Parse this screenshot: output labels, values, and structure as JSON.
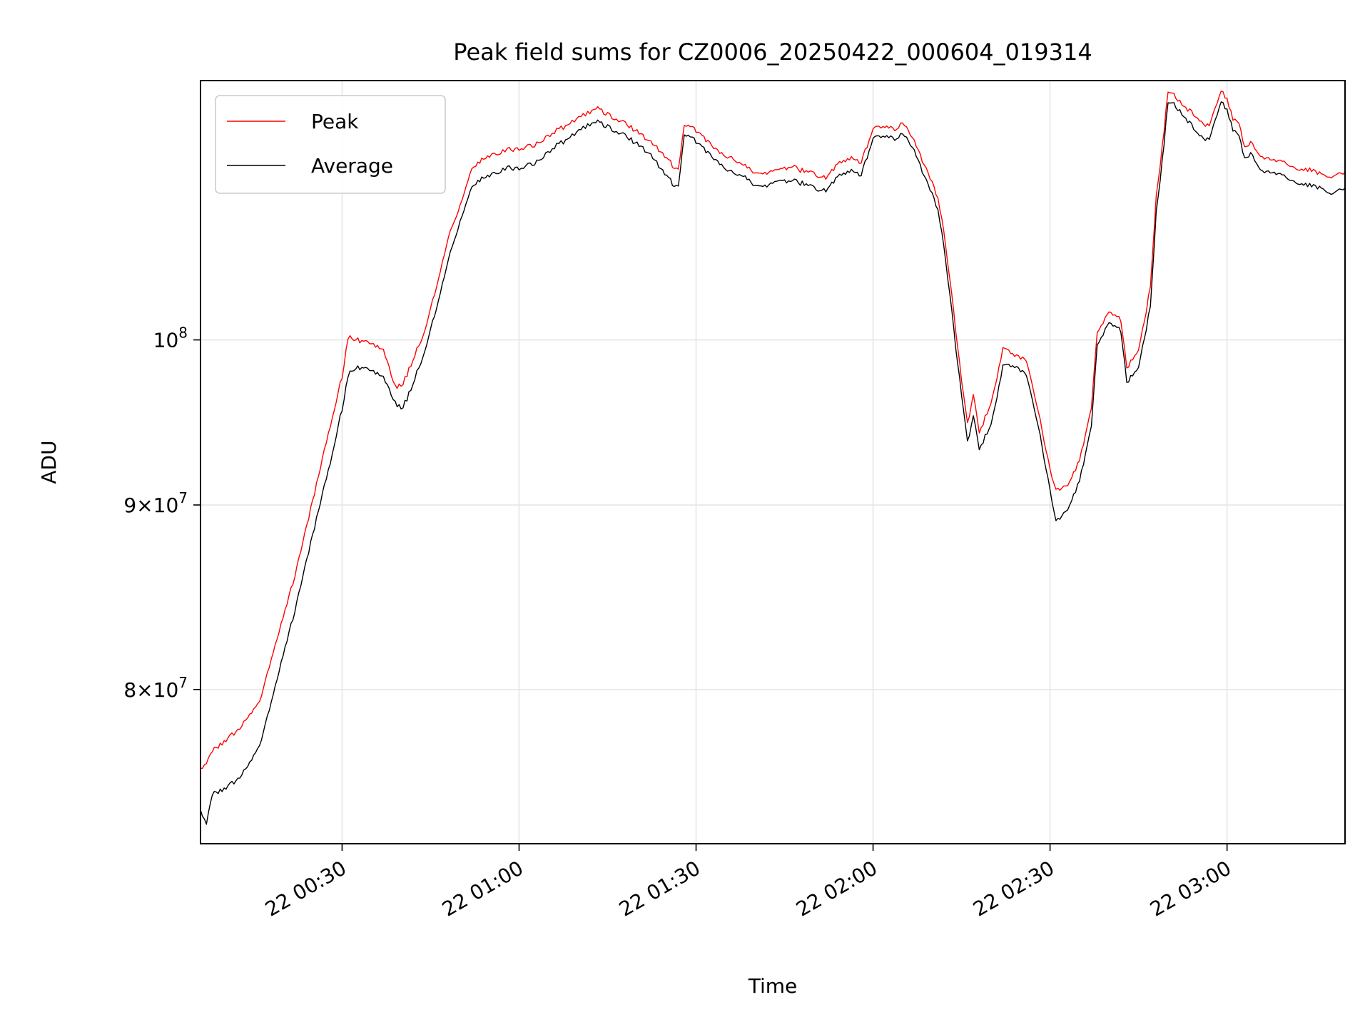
{
  "chart_data": {
    "type": "line",
    "title": "Peak field sums for CZ0006_20250422_000604_019314",
    "xlabel": "Time",
    "ylabel": "ADU",
    "yscale": "log",
    "x_unit": "time (HH:MM, 2025-04-22)",
    "xlim": [
      "00:06",
      "03:20"
    ],
    "ylim": [
      72500000,
      118000000
    ],
    "x_ticks": [
      {
        "value": "00:30",
        "label": "22 00:30"
      },
      {
        "value": "01:00",
        "label": "22 01:00"
      },
      {
        "value": "01:30",
        "label": "22 01:30"
      },
      {
        "value": "02:00",
        "label": "22 02:00"
      },
      {
        "value": "02:30",
        "label": "22 02:30"
      },
      {
        "value": "03:00",
        "label": "22 03:00"
      }
    ],
    "y_ticks": [
      {
        "value": 80000000,
        "base": "8",
        "times": "×",
        "pow": "10",
        "exp": "7"
      },
      {
        "value": 90000000,
        "base": "9",
        "times": "×",
        "pow": "10",
        "exp": "7"
      },
      {
        "value": 100000000,
        "base": "",
        "times": "",
        "pow": "10",
        "exp": "8"
      }
    ],
    "grid": true,
    "legend_position": "upper left",
    "series": [
      {
        "name": "Peak",
        "color": "#ff0000",
        "x": [
          "00:06",
          "00:07",
          "00:08",
          "00:10",
          "00:12",
          "00:14",
          "00:16",
          "00:18",
          "00:20",
          "00:22",
          "00:24",
          "00:26",
          "00:28",
          "00:29",
          "00:30",
          "00:31",
          "00:32",
          "00:33",
          "00:35",
          "00:37",
          "00:39",
          "00:40",
          "00:41",
          "00:42",
          "00:44",
          "00:46",
          "00:48",
          "00:50",
          "00:52",
          "00:53",
          "00:55",
          "00:58",
          "01:00",
          "01:03",
          "01:06",
          "01:09",
          "01:12",
          "01:13",
          "01:15",
          "01:18",
          "01:20",
          "01:22",
          "01:24",
          "01:26",
          "01:27",
          "01:28",
          "01:30",
          "01:32",
          "01:34",
          "01:36",
          "01:38",
          "01:40",
          "01:42",
          "01:44",
          "01:46",
          "01:48",
          "01:50",
          "01:52",
          "01:54",
          "01:56",
          "01:58",
          "02:00",
          "02:02",
          "02:04",
          "02:05",
          "02:07",
          "02:09",
          "02:11",
          "02:12",
          "02:13",
          "02:14",
          "02:15",
          "02:16",
          "02:17",
          "02:18",
          "02:20",
          "02:22",
          "02:24",
          "02:26",
          "02:28",
          "02:30",
          "02:31",
          "02:33",
          "02:35",
          "02:37",
          "02:38",
          "02:40",
          "02:42",
          "02:43",
          "02:45",
          "02:46",
          "02:47",
          "02:48",
          "02:49",
          "02:50",
          "02:51",
          "02:52",
          "02:53",
          "02:55",
          "02:57",
          "02:59",
          "03:00",
          "03:01",
          "03:02",
          "03:03",
          "03:04",
          "03:06",
          "03:08",
          "03:10",
          "03:12",
          "03:14",
          "03:16",
          "03:18",
          "03:20"
        ],
        "values": [
          76000000,
          76400000,
          76900000,
          77400000,
          77900000,
          78500000,
          79400000,
          81600000,
          83800000,
          86000000,
          88800000,
          91700000,
          94700000,
          96200000,
          97700000,
          100200000,
          100100000,
          99900000,
          99800000,
          99300000,
          97100000,
          97100000,
          97800000,
          98800000,
          100600000,
          103500000,
          106800000,
          109000000,
          111500000,
          112000000,
          112500000,
          112900000,
          113000000,
          113300000,
          114200000,
          114900000,
          115700000,
          116000000,
          115500000,
          114800000,
          114200000,
          113600000,
          112800000,
          111800000,
          111600000,
          114800000,
          114300000,
          113500000,
          112600000,
          112400000,
          111800000,
          111300000,
          111300000,
          111500000,
          111700000,
          111400000,
          111200000,
          110900000,
          111800000,
          112300000,
          112000000,
          114500000,
          114500000,
          114400000,
          115000000,
          113600000,
          111500000,
          109500000,
          107200000,
          104000000,
          100600000,
          97500000,
          94800000,
          96500000,
          94300000,
          96000000,
          99400000,
          99000000,
          98700000,
          95600000,
          92100000,
          90800000,
          91200000,
          92600000,
          95700000,
          100400000,
          101800000,
          101300000,
          98200000,
          99300000,
          101200000,
          103500000,
          109500000,
          113000000,
          117200000,
          116900000,
          116400000,
          116000000,
          115300000,
          114500000,
          117300000,
          116500000,
          115200000,
          114700000,
          113200000,
          113400000,
          112400000,
          112200000,
          112000000,
          111600000,
          111500000,
          111200000,
          111000000,
          111300000
        ]
      },
      {
        "name": "Average",
        "color": "#000000",
        "x": [
          "00:06",
          "00:07",
          "00:08",
          "00:10",
          "00:12",
          "00:14",
          "00:16",
          "00:18",
          "00:20",
          "00:22",
          "00:24",
          "00:26",
          "00:28",
          "00:29",
          "00:30",
          "00:31",
          "00:32",
          "00:33",
          "00:35",
          "00:37",
          "00:39",
          "00:40",
          "00:41",
          "00:42",
          "00:44",
          "00:46",
          "00:48",
          "00:50",
          "00:52",
          "00:53",
          "00:55",
          "00:58",
          "01:00",
          "01:03",
          "01:06",
          "01:09",
          "01:12",
          "01:13",
          "01:15",
          "01:18",
          "01:20",
          "01:22",
          "01:24",
          "01:26",
          "01:27",
          "01:28",
          "01:30",
          "01:32",
          "01:34",
          "01:36",
          "01:38",
          "01:40",
          "01:42",
          "01:44",
          "01:46",
          "01:48",
          "01:50",
          "01:52",
          "01:54",
          "01:56",
          "01:58",
          "02:00",
          "02:02",
          "02:04",
          "02:05",
          "02:07",
          "02:09",
          "02:11",
          "02:12",
          "02:13",
          "02:14",
          "02:15",
          "02:16",
          "02:17",
          "02:18",
          "02:20",
          "02:22",
          "02:24",
          "02:26",
          "02:28",
          "02:30",
          "02:31",
          "02:33",
          "02:35",
          "02:37",
          "02:38",
          "02:40",
          "02:42",
          "02:43",
          "02:45",
          "02:46",
          "02:47",
          "02:48",
          "02:49",
          "02:50",
          "02:51",
          "02:52",
          "02:53",
          "02:55",
          "02:57",
          "02:59",
          "03:00",
          "03:01",
          "03:02",
          "03:03",
          "03:04",
          "03:06",
          "03:08",
          "03:10",
          "03:12",
          "03:14",
          "03:16",
          "03:18",
          "03:20"
        ],
        "values": [
          74000000,
          73500000,
          74800000,
          75100000,
          75500000,
          76100000,
          77200000,
          79400000,
          81800000,
          84100000,
          86900000,
          89700000,
          92500000,
          94100000,
          95700000,
          97800000,
          98200000,
          98200000,
          98100000,
          97600000,
          96100000,
          95700000,
          96300000,
          97300000,
          99300000,
          102100000,
          105300000,
          107900000,
          110200000,
          110700000,
          111100000,
          111600000,
          111600000,
          112000000,
          113100000,
          113900000,
          114800000,
          115000000,
          114600000,
          113900000,
          113300000,
          112700000,
          111600000,
          110500000,
          110400000,
          114100000,
          113500000,
          112700000,
          111800000,
          111400000,
          111000000,
          110400000,
          110400000,
          110700000,
          110700000,
          110500000,
          110200000,
          110000000,
          110900000,
          111400000,
          111100000,
          113800000,
          113800000,
          113700000,
          114200000,
          112900000,
          110700000,
          108700000,
          106200000,
          103000000,
          99500000,
          96600000,
          93700000,
          95200000,
          93300000,
          94700000,
          98300000,
          98300000,
          97800000,
          94700000,
          90900000,
          89000000,
          89800000,
          91400000,
          94600000,
          99600000,
          101100000,
          100600000,
          97300000,
          98200000,
          100100000,
          102200000,
          108400000,
          112000000,
          116400000,
          116200000,
          115700000,
          115200000,
          114200000,
          113500000,
          116500000,
          115700000,
          114400000,
          113800000,
          112400000,
          112600000,
          111400000,
          111300000,
          111000000,
          110600000,
          110400000,
          110200000,
          109800000,
          110200000
        ]
      }
    ]
  }
}
